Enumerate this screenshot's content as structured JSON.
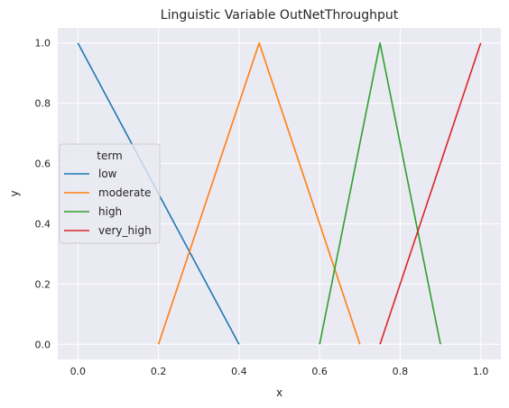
{
  "chart_data": {
    "type": "line",
    "title": "Linguistic Variable OutNetThroughput",
    "xlabel": "x",
    "ylabel": "y",
    "xlim": [
      -0.05,
      1.05
    ],
    "ylim": [
      -0.05,
      1.05
    ],
    "xticks": [
      "0.0",
      "0.2",
      "0.4",
      "0.6",
      "0.8",
      "1.0"
    ],
    "yticks": [
      "0.0",
      "0.2",
      "0.4",
      "0.6",
      "0.8",
      "1.0"
    ],
    "grid": true,
    "legend": {
      "title": "term",
      "placement": "center-left"
    },
    "series": [
      {
        "name": "low",
        "color": "#1f77b4",
        "x": [
          0.0,
          0.4
        ],
        "y": [
          1.0,
          0.0
        ]
      },
      {
        "name": "moderate",
        "color": "#ff7f0e",
        "x": [
          0.2,
          0.45,
          0.7
        ],
        "y": [
          0.0,
          1.0,
          0.0
        ]
      },
      {
        "name": "high",
        "color": "#2ca02c",
        "x": [
          0.6,
          0.75,
          0.9
        ],
        "y": [
          0.0,
          1.0,
          0.0
        ]
      },
      {
        "name": "very_high",
        "color": "#d62728",
        "x": [
          0.75,
          1.0
        ],
        "y": [
          0.0,
          1.0
        ]
      }
    ]
  }
}
